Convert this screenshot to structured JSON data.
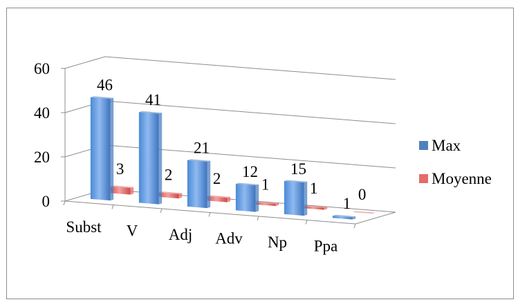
{
  "chart_data": {
    "type": "bar",
    "title": "",
    "xlabel": "",
    "ylabel": "",
    "ylim": [
      0,
      60
    ],
    "yticks": [
      0,
      20,
      40,
      60
    ],
    "grid": true,
    "legend_position": "right",
    "categories": [
      "Subst",
      "V",
      "Adj",
      "Adv",
      "Np",
      "Ppa"
    ],
    "series": [
      {
        "name": "Max",
        "values": [
          46,
          41,
          21,
          12,
          15,
          1
        ],
        "color": "#4f81bd"
      },
      {
        "name": "Moyenne",
        "values": [
          3,
          2,
          2,
          1,
          1,
          0
        ],
        "color": "#e46c6a"
      }
    ]
  }
}
